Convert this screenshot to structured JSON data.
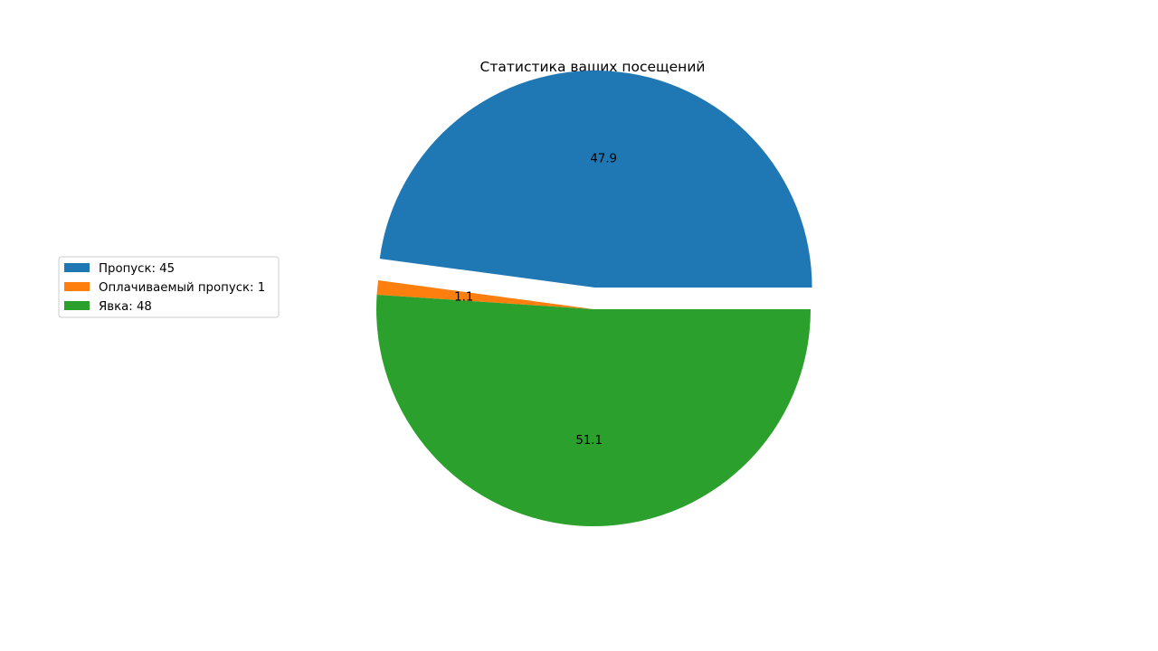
{
  "chart_data": {
    "type": "pie",
    "title": "Статистика ваших посещений",
    "slices": [
      {
        "label": "Пропуск",
        "value": 45,
        "pct_label": "47.9",
        "color": "#1f77b4",
        "explode": 0.1
      },
      {
        "label": "Оплачиваемый пропуск",
        "value": 1,
        "pct_label": "1.1",
        "color": "#ff7f0e",
        "explode": 0.0
      },
      {
        "label": "Явка",
        "value": 48,
        "pct_label": "51.1",
        "color": "#2ca02c",
        "explode": 0.0
      }
    ],
    "legend": {
      "placement": "center-left",
      "entries": [
        "Пропуск: 45",
        "Оплачиваемый пропуск: 1",
        "Явка: 48"
      ]
    },
    "start_angle": 0,
    "direction": "counterclockwise"
  }
}
